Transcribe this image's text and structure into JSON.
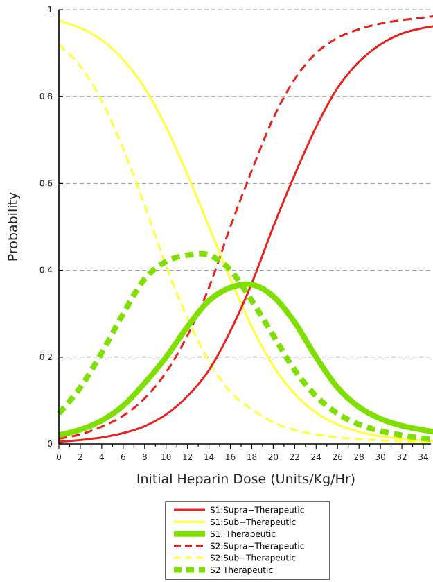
{
  "chart_data": {
    "type": "line",
    "title": "",
    "xlabel": "Initial Heparin Dose (Units/Kg/Hr)",
    "ylabel": "Probability",
    "xlim": [
      0,
      35
    ],
    "ylim": [
      0,
      1
    ],
    "x_ticks": [
      "0",
      "2",
      "4",
      "6",
      "8",
      "10",
      "12",
      "14",
      "16",
      "18",
      "20",
      "22",
      "24",
      "26",
      "28",
      "30",
      "32",
      "34"
    ],
    "y_ticks": [
      "0",
      "0.2",
      "0.4",
      "0.6",
      "0.8",
      "1"
    ],
    "grid": "horizontal dashed",
    "legend_position": "bottom-center",
    "x": [
      0,
      2,
      4,
      6,
      8,
      10,
      12,
      14,
      16,
      18,
      20,
      22,
      24,
      26,
      28,
      30,
      32,
      34,
      35
    ],
    "series": [
      {
        "name": "S1:Supra−Therapeutic",
        "color": "#e8231e",
        "style": "solid",
        "width": 3,
        "values": [
          0.005,
          0.009,
          0.015,
          0.025,
          0.041,
          0.068,
          0.11,
          0.17,
          0.26,
          0.37,
          0.5,
          0.62,
          0.73,
          0.82,
          0.88,
          0.92,
          0.945,
          0.958,
          0.962
        ]
      },
      {
        "name": "S1:Sub−Therapeutic",
        "color": "#ffff3a",
        "style": "solid",
        "width": 3,
        "values": [
          0.975,
          0.958,
          0.93,
          0.885,
          0.82,
          0.73,
          0.62,
          0.5,
          0.38,
          0.27,
          0.18,
          0.115,
          0.072,
          0.045,
          0.028,
          0.018,
          0.012,
          0.008,
          0.007
        ]
      },
      {
        "name": "S1: Therapeutic",
        "color": "#7fe000",
        "style": "solid",
        "width": 8,
        "values": [
          0.02,
          0.033,
          0.054,
          0.088,
          0.14,
          0.2,
          0.27,
          0.33,
          0.36,
          0.367,
          0.34,
          0.28,
          0.2,
          0.13,
          0.085,
          0.058,
          0.042,
          0.032,
          0.028
        ]
      },
      {
        "name": "S2:Supra−Therapeutic",
        "color": "#e8231e",
        "style": "dashed",
        "width": 3,
        "values": [
          0.012,
          0.022,
          0.04,
          0.065,
          0.105,
          0.165,
          0.25,
          0.36,
          0.5,
          0.63,
          0.75,
          0.84,
          0.9,
          0.935,
          0.955,
          0.968,
          0.976,
          0.982,
          0.985
        ]
      },
      {
        "name": "S2:Sub−Therapeutic",
        "color": "#ffff3a",
        "style": "dashed",
        "width": 3,
        "values": [
          0.92,
          0.87,
          0.79,
          0.68,
          0.55,
          0.41,
          0.29,
          0.19,
          0.12,
          0.08,
          0.05,
          0.032,
          0.022,
          0.015,
          0.011,
          0.008,
          0.006,
          0.005,
          0.004
        ]
      },
      {
        "name": "S2 Therapeutic",
        "color": "#7fe000",
        "style": "dashed",
        "width": 8,
        "values": [
          0.07,
          0.13,
          0.21,
          0.3,
          0.38,
          0.42,
          0.435,
          0.435,
          0.4,
          0.33,
          0.25,
          0.17,
          0.11,
          0.07,
          0.045,
          0.03,
          0.02,
          0.013,
          0.011
        ]
      }
    ]
  }
}
